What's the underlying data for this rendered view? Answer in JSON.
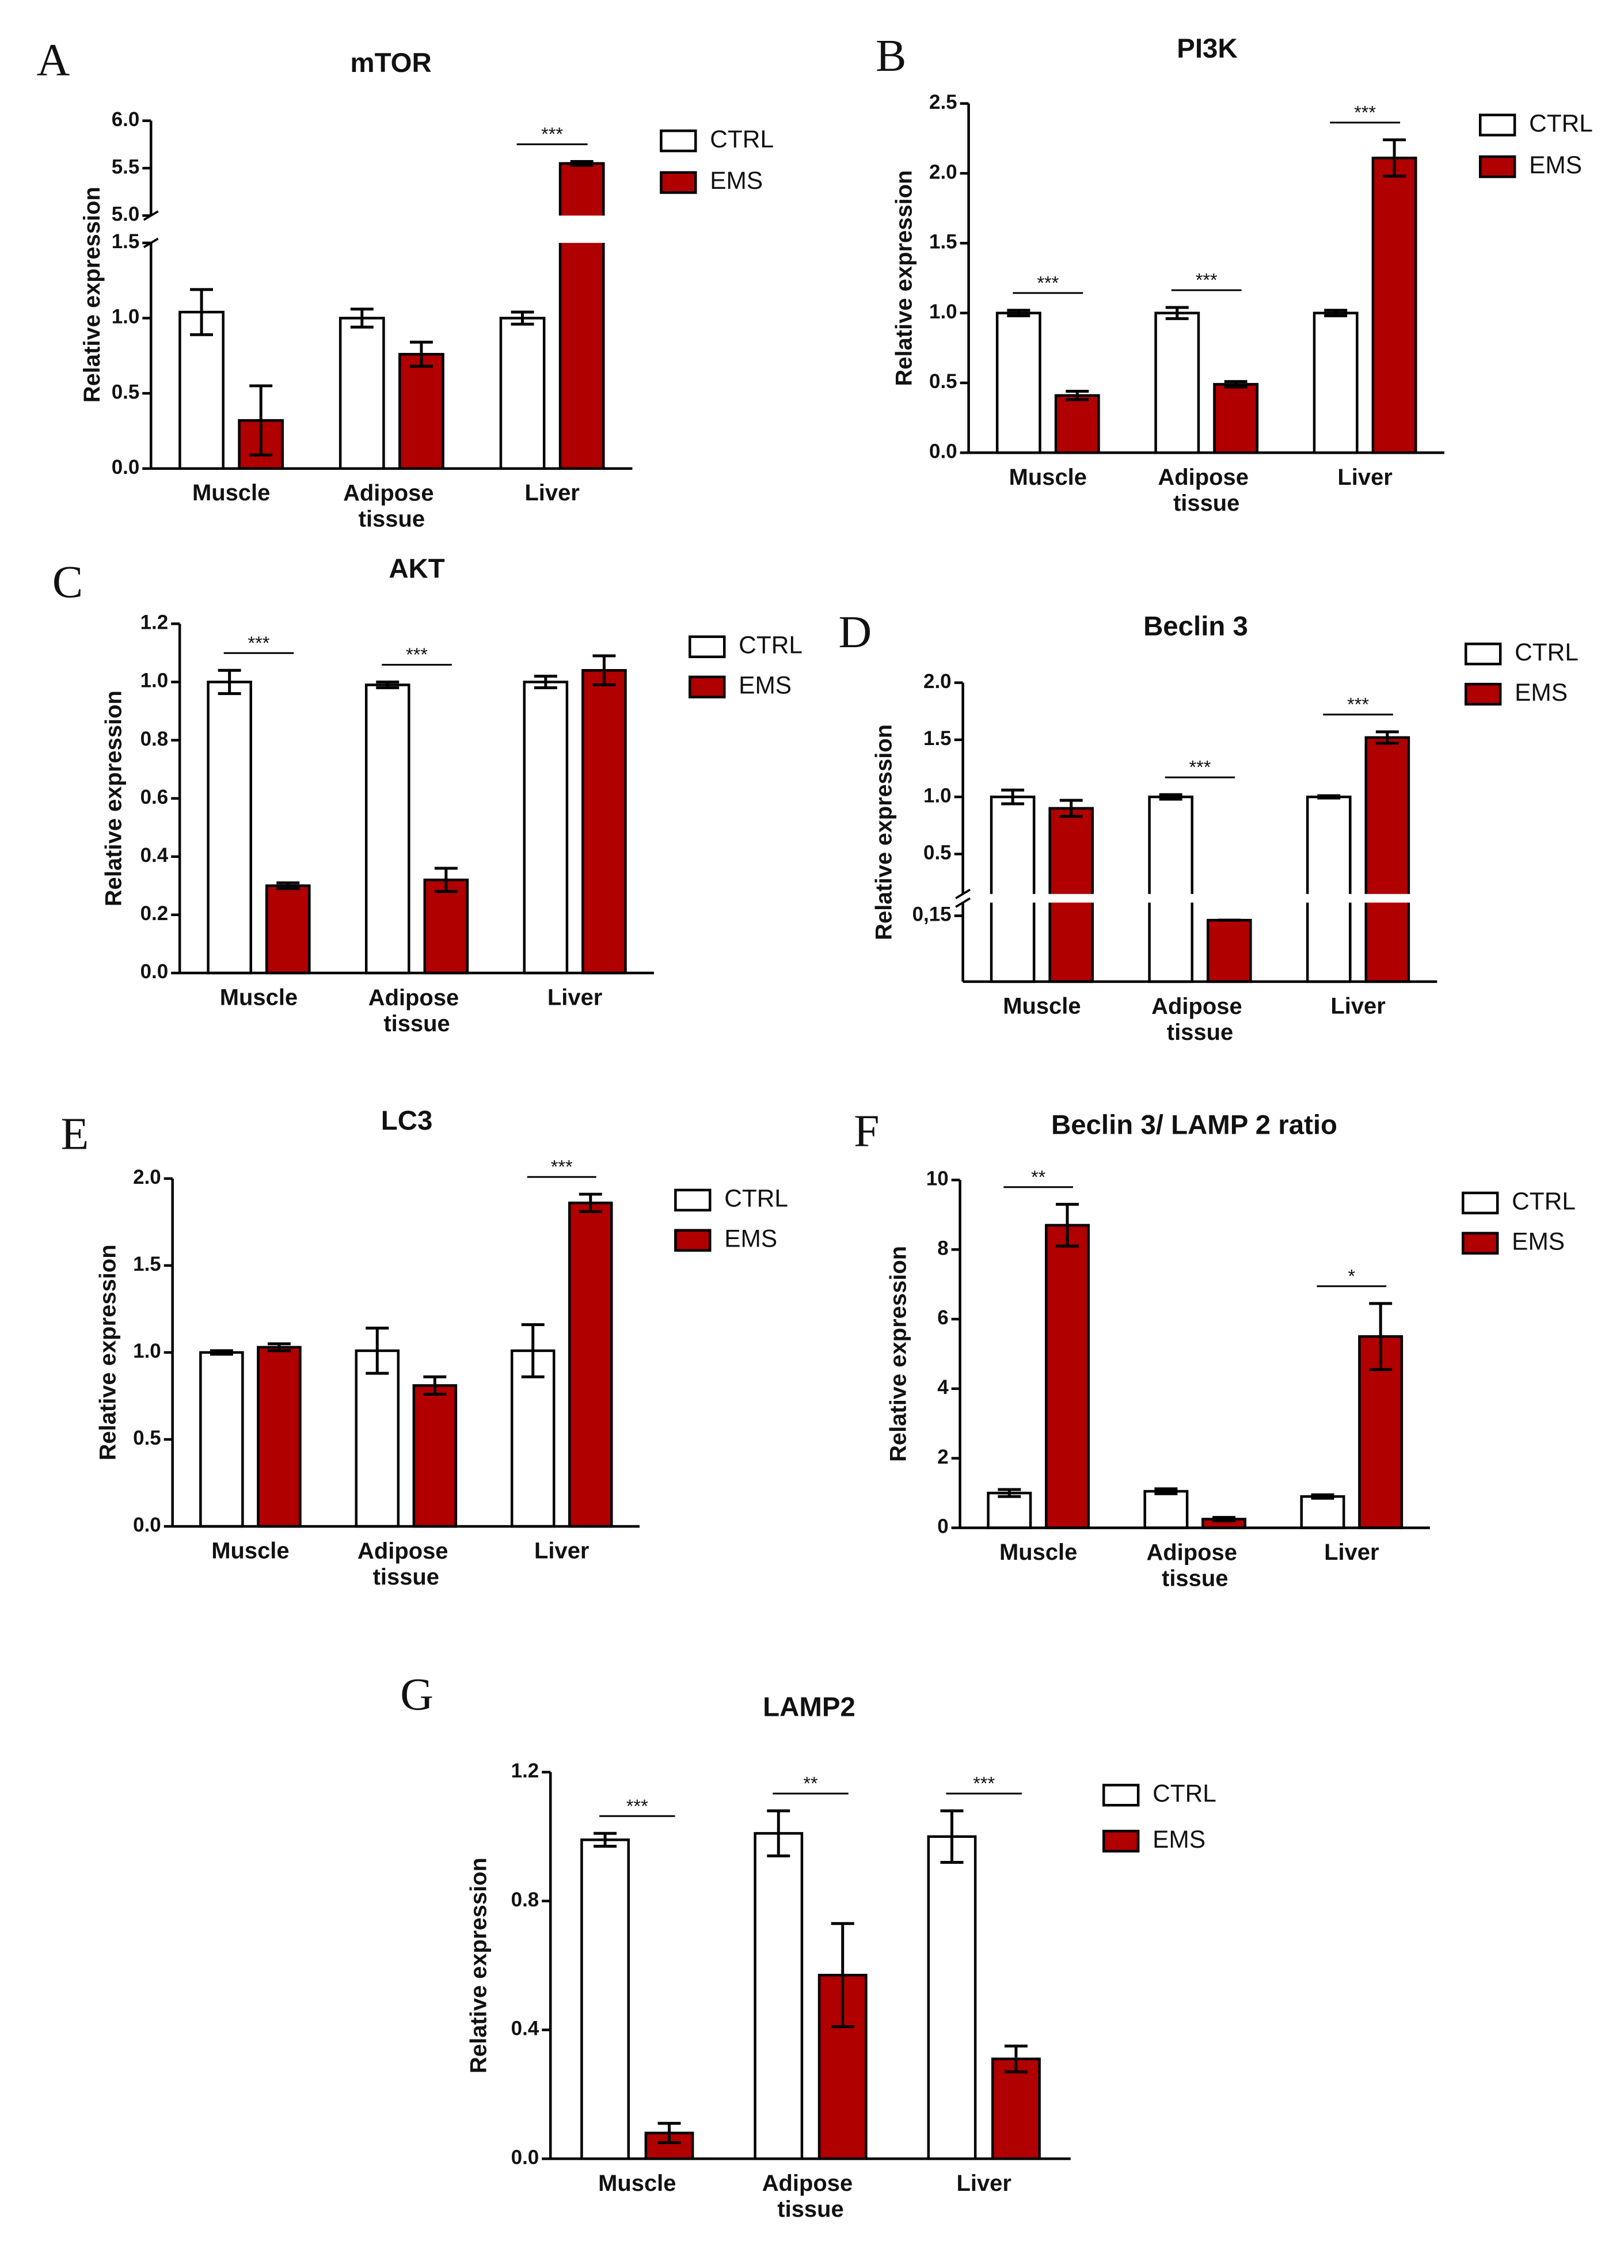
{
  "chart_data": [
    {
      "type": "bar",
      "panel": "A",
      "title": "mTOR",
      "ylabel": "Relative expression",
      "categories": [
        "Muscle",
        "Adipose tissue",
        "Liver"
      ],
      "series": [
        {
          "name": "CTRL",
          "color": "#ffffff",
          "values": [
            1.04,
            1.0,
            1.0
          ],
          "errors": [
            0.15,
            0.06,
            0.04
          ]
        },
        {
          "name": "EMS",
          "color": "#b00000",
          "values": [
            0.32,
            0.76,
            5.55
          ],
          "errors": [
            0.23,
            0.08,
            0.02
          ]
        }
      ],
      "significance": [
        null,
        null,
        "***"
      ],
      "ylim": [
        0,
        6
      ],
      "ybreak": [
        1.5,
        5
      ],
      "yticks": [
        {
          "value": 0,
          "label": "0.0"
        },
        0.5,
        {
          "value": 1,
          "label": "1.0"
        },
        1.5,
        {
          "value": 5,
          "label": "5.0"
        },
        5.5,
        {
          "value": 6,
          "label": "6.0"
        }
      ]
    },
    {
      "type": "bar",
      "panel": "B",
      "title": "PI3K",
      "ylabel": "Relative expression",
      "categories": [
        "Muscle",
        "Adipose tissue",
        "Liver"
      ],
      "series": [
        {
          "name": "CTRL",
          "color": "#ffffff",
          "values": [
            1.0,
            1.0,
            1.0
          ],
          "errors": [
            0.02,
            0.04,
            0.02
          ]
        },
        {
          "name": "EMS",
          "color": "#b00000",
          "values": [
            0.41,
            0.49,
            2.11
          ],
          "errors": [
            0.03,
            0.02,
            0.13
          ]
        }
      ],
      "significance": [
        "***",
        "***",
        "***"
      ],
      "ylim": [
        0,
        2.5
      ],
      "yticks": [
        {
          "value": 0,
          "label": "0.0"
        },
        0.5,
        {
          "value": 1,
          "label": "1.0"
        },
        1.5,
        {
          "value": 2,
          "label": "2.0"
        },
        2.5
      ]
    },
    {
      "type": "bar",
      "panel": "C",
      "title": "AKT",
      "ylabel": "Relative expression",
      "categories": [
        "Muscle",
        "Adipose tissue",
        "Liver"
      ],
      "series": [
        {
          "name": "CTRL",
          "color": "#ffffff",
          "values": [
            1.0,
            0.99,
            1.0
          ],
          "errors": [
            0.04,
            0.01,
            0.02
          ]
        },
        {
          "name": "EMS",
          "color": "#b00000",
          "values": [
            0.3,
            0.32,
            1.04
          ],
          "errors": [
            0.01,
            0.04,
            0.05
          ]
        }
      ],
      "significance": [
        "***",
        "***",
        null
      ],
      "ylim": [
        0,
        1.2
      ],
      "yticks": [
        {
          "value": 0,
          "label": "0.0"
        },
        0.2,
        0.4,
        0.6,
        0.8,
        {
          "value": 1,
          "label": "1.0"
        },
        1.2
      ]
    },
    {
      "type": "bar",
      "panel": "D",
      "title": "Beclin 3",
      "ylabel": "Relative expression",
      "categories": [
        "Muscle",
        "Adipose tissue",
        "Liver"
      ],
      "series": [
        {
          "name": "CTRL",
          "color": "#ffffff",
          "values": [
            1.0,
            1.0,
            1.0
          ],
          "errors": [
            0.06,
            0.02,
            0.01
          ]
        },
        {
          "name": "EMS",
          "color": "#b00000",
          "values": [
            0.9,
            0.14,
            1.52
          ],
          "errors": [
            0.07,
            0,
            0.05
          ]
        }
      ],
      "significance": [
        null,
        "***",
        "***"
      ],
      "ylim": [
        0,
        2
      ],
      "ybreak": [
        0.18,
        0.15
      ],
      "yticks": [
        {
          "value": 0.15,
          "label": "0,15"
        },
        0.5,
        {
          "value": 1,
          "label": "1.0"
        },
        1.5,
        {
          "value": 2,
          "label": "2.0"
        }
      ]
    },
    {
      "type": "bar",
      "panel": "E",
      "title": "LC3",
      "ylabel": "Relative expression",
      "categories": [
        "Muscle",
        "Adipose tissue",
        "Liver"
      ],
      "series": [
        {
          "name": "CTRL",
          "color": "#ffffff",
          "values": [
            1.0,
            1.01,
            1.01
          ],
          "errors": [
            0.01,
            0.13,
            0.15
          ]
        },
        {
          "name": "EMS",
          "color": "#b00000",
          "values": [
            1.03,
            0.81,
            1.86
          ],
          "errors": [
            0.02,
            0.05,
            0.05
          ]
        }
      ],
      "significance": [
        null,
        null,
        "***"
      ],
      "ylim": [
        0,
        2
      ],
      "yticks": [
        {
          "value": 0,
          "label": "0.0"
        },
        0.5,
        {
          "value": 1,
          "label": "1.0"
        },
        1.5,
        {
          "value": 2,
          "label": "2.0"
        }
      ]
    },
    {
      "type": "bar",
      "panel": "F",
      "title": "Beclin 3/ LAMP 2 ratio",
      "ylabel": "Relative expression",
      "categories": [
        "Muscle",
        "Adipose tissue",
        "Liver"
      ],
      "series": [
        {
          "name": "CTRL",
          "color": "#ffffff",
          "values": [
            1.0,
            1.05,
            0.9
          ],
          "errors": [
            0.1,
            0.07,
            0.05
          ]
        },
        {
          "name": "EMS",
          "color": "#b00000",
          "values": [
            8.7,
            0.25,
            5.5
          ],
          "errors": [
            0.6,
            0.05,
            0.95
          ]
        }
      ],
      "significance": [
        "**",
        null,
        "*"
      ],
      "ylim": [
        0,
        10
      ],
      "yticks": [
        0,
        2,
        4,
        6,
        8,
        10
      ]
    },
    {
      "type": "bar",
      "panel": "G",
      "title": "LAMP2",
      "ylabel": "Relative expression",
      "categories": [
        "Muscle",
        "Adipose tissue",
        "Liver"
      ],
      "series": [
        {
          "name": "CTRL",
          "color": "#ffffff",
          "values": [
            0.99,
            1.01,
            1.0
          ],
          "errors": [
            0.02,
            0.07,
            0.08
          ]
        },
        {
          "name": "EMS",
          "color": "#b00000",
          "values": [
            0.08,
            0.57,
            0.31
          ],
          "errors": [
            0.03,
            0.16,
            0.04
          ]
        }
      ],
      "significance": [
        "***",
        "**",
        "***"
      ],
      "ylim": [
        0,
        1.2
      ],
      "yticks": [
        {
          "value": 0,
          "label": "0.0"
        },
        0.4,
        0.8,
        1.2
      ]
    }
  ]
}
